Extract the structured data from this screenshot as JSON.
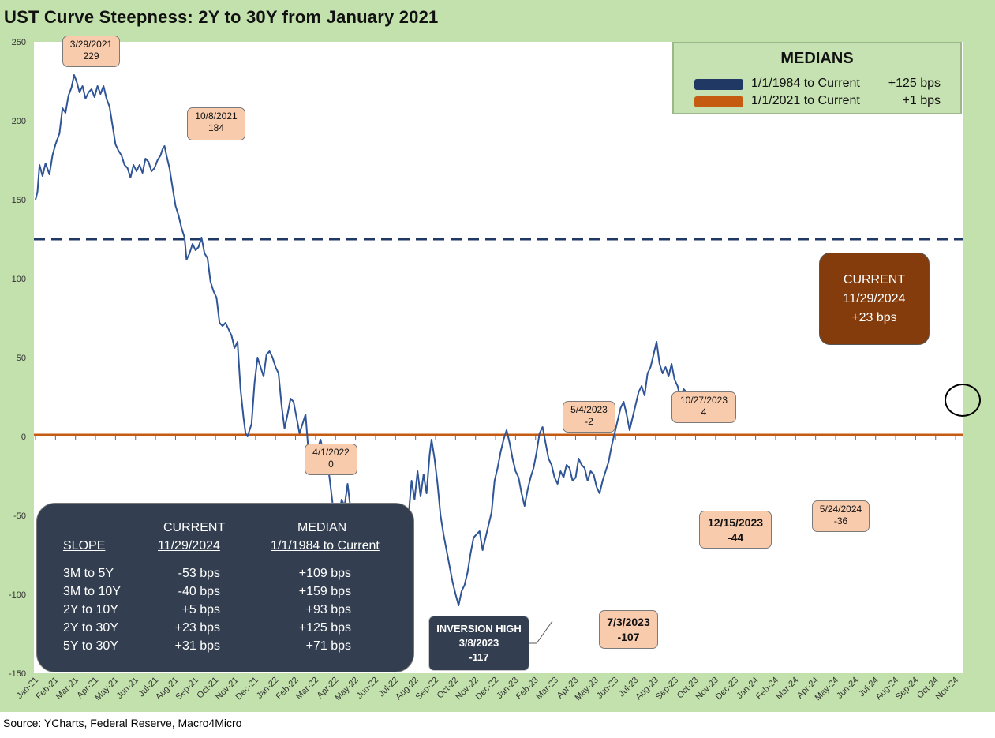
{
  "title": "UST Curve Steepness: 2Y to 30Y from January 2021",
  "source": "Source: YCharts, Federal Reserve, Macro4Micro",
  "colors": {
    "series": "#2f5597",
    "median_1984": "#203864",
    "median_2021": "#c55a11",
    "plot_bg": "#ffffff",
    "frame": "#c3e1ad"
  },
  "medians_box": {
    "title": "MEDIANS",
    "rows": [
      {
        "label": "1/1/1984 to Current",
        "value": "+125 bps",
        "color": "#203864"
      },
      {
        "label": "1/1/2021 to Current",
        "value": "+1 bps",
        "color": "#c55a11"
      }
    ]
  },
  "current_box": {
    "line1": "CURRENT",
    "line2": "11/29/2024",
    "line3": "+23 bps"
  },
  "annotations": [
    {
      "date": "3/29/2021",
      "value": "229"
    },
    {
      "date": "10/8/2021",
      "value": "184"
    },
    {
      "date": "4/1/2022",
      "value": "0"
    },
    {
      "date": "5/4/2023",
      "value": "-2"
    },
    {
      "date": "10/27/2023",
      "value": "4"
    },
    {
      "date": "12/15/2023",
      "value": "-44"
    },
    {
      "date": "5/24/2024",
      "value": "-36"
    },
    {
      "date": "7/3/2023",
      "value": "-107"
    },
    {
      "label": "INVERSION HIGH",
      "date": "3/8/2023",
      "value": "-117"
    }
  ],
  "slope_table": {
    "headers": {
      "slope": "SLOPE",
      "current_top": "CURRENT",
      "current_bottom": "11/29/2024",
      "median_top": "MEDIAN",
      "median_bottom": "1/1/1984 to Current"
    },
    "rows": [
      {
        "name": "3M to 5Y",
        "current": "-53 bps",
        "median": "+109 bps"
      },
      {
        "name": "3M to 10Y",
        "current": "-40 bps",
        "median": "+159 bps"
      },
      {
        "name": "2Y to 10Y",
        "current": "+5 bps",
        "median": "+93 bps"
      },
      {
        "name": "2Y to 30Y",
        "current": "+23 bps",
        "median": "+125 bps"
      },
      {
        "name": "5Y to 30Y",
        "current": "+31 bps",
        "median": "+71 bps"
      }
    ]
  },
  "chart_data": {
    "type": "line",
    "ylim": [
      -150,
      250
    ],
    "ytick_values": [
      -150,
      -100,
      -50,
      0,
      50,
      100,
      150,
      200,
      250
    ],
    "ytick_labels": [
      "-150",
      "-100",
      "-50",
      "0",
      "50",
      "100",
      "150",
      "200",
      "250"
    ],
    "xtick_labels": [
      "Jan-21",
      "Feb-21",
      "Mar-21",
      "Apr-21",
      "May-21",
      "Jun-21",
      "Jul-21",
      "Aug-21",
      "Sep-21",
      "Oct-21",
      "Nov-21",
      "Dec-21",
      "Jan-22",
      "Feb-22",
      "Mar-22",
      "Apr-22",
      "May-22",
      "Jun-22",
      "Jul-22",
      "Aug-22",
      "Sep-22",
      "Oct-22",
      "Nov-22",
      "Dec-22",
      "Jan-23",
      "Feb-23",
      "Mar-23",
      "Apr-23",
      "May-23",
      "Jun-23",
      "Jul-23",
      "Aug-23",
      "Sep-23",
      "Oct-23",
      "Nov-23",
      "Dec-23",
      "Jan-24",
      "Feb-24",
      "Mar-24",
      "Apr-24",
      "May-24",
      "Jun-24",
      "Jul-24",
      "Aug-24",
      "Sep-24",
      "Oct-24",
      "Nov-24"
    ],
    "reference_lines": [
      {
        "label": "1/1/1984 to Current",
        "y": 125,
        "style": "dashed"
      },
      {
        "label": "1/1/2021 to Current",
        "y": 1,
        "style": "solid"
      }
    ],
    "series": [
      {
        "values": [
          [
            0,
            150
          ],
          [
            0.1,
            155
          ],
          [
            0.2,
            172
          ],
          [
            0.35,
            165
          ],
          [
            0.5,
            173
          ],
          [
            0.7,
            166
          ],
          [
            0.85,
            178
          ],
          [
            1.0,
            185
          ],
          [
            1.2,
            192
          ],
          [
            1.35,
            208
          ],
          [
            1.5,
            205
          ],
          [
            1.65,
            216
          ],
          [
            1.8,
            221
          ],
          [
            1.93,
            229
          ],
          [
            2.05,
            225
          ],
          [
            2.2,
            218
          ],
          [
            2.35,
            222
          ],
          [
            2.5,
            214
          ],
          [
            2.65,
            218
          ],
          [
            2.8,
            220
          ],
          [
            2.95,
            215
          ],
          [
            3.1,
            222
          ],
          [
            3.25,
            217
          ],
          [
            3.4,
            222
          ],
          [
            3.55,
            214
          ],
          [
            3.7,
            209
          ],
          [
            3.85,
            197
          ],
          [
            4.0,
            185
          ],
          [
            4.15,
            181
          ],
          [
            4.3,
            178
          ],
          [
            4.45,
            172
          ],
          [
            4.6,
            170
          ],
          [
            4.75,
            164
          ],
          [
            4.9,
            172
          ],
          [
            5.05,
            168
          ],
          [
            5.2,
            172
          ],
          [
            5.35,
            167
          ],
          [
            5.5,
            176
          ],
          [
            5.65,
            174
          ],
          [
            5.8,
            168
          ],
          [
            5.95,
            170
          ],
          [
            6.1,
            175
          ],
          [
            6.25,
            178
          ],
          [
            6.35,
            182
          ],
          [
            6.45,
            184
          ],
          [
            6.55,
            178
          ],
          [
            6.7,
            170
          ],
          [
            6.85,
            158
          ],
          [
            7.0,
            146
          ],
          [
            7.15,
            140
          ],
          [
            7.3,
            132
          ],
          [
            7.45,
            126
          ],
          [
            7.55,
            112
          ],
          [
            7.7,
            116
          ],
          [
            7.85,
            122
          ],
          [
            8.0,
            118
          ],
          [
            8.15,
            120
          ],
          [
            8.3,
            126
          ],
          [
            8.45,
            116
          ],
          [
            8.6,
            113
          ],
          [
            8.75,
            98
          ],
          [
            8.9,
            92
          ],
          [
            9.05,
            88
          ],
          [
            9.2,
            72
          ],
          [
            9.35,
            70
          ],
          [
            9.5,
            72
          ],
          [
            9.65,
            68
          ],
          [
            9.8,
            64
          ],
          [
            9.95,
            56
          ],
          [
            10.1,
            60
          ],
          [
            10.25,
            30
          ],
          [
            10.4,
            12
          ],
          [
            10.5,
            2
          ],
          [
            10.6,
            0
          ],
          [
            10.8,
            8
          ],
          [
            10.95,
            34
          ],
          [
            11.1,
            50
          ],
          [
            11.25,
            44
          ],
          [
            11.4,
            38
          ],
          [
            11.55,
            52
          ],
          [
            11.7,
            54
          ],
          [
            11.85,
            50
          ],
          [
            12.0,
            44
          ],
          [
            12.15,
            40
          ],
          [
            12.3,
            20
          ],
          [
            12.45,
            5
          ],
          [
            12.6,
            14
          ],
          [
            12.75,
            24
          ],
          [
            12.9,
            22
          ],
          [
            13.05,
            12
          ],
          [
            13.2,
            2
          ],
          [
            13.35,
            8
          ],
          [
            13.5,
            14
          ],
          [
            13.65,
            -10
          ],
          [
            13.8,
            -14
          ],
          [
            13.95,
            -22
          ],
          [
            14.1,
            -8
          ],
          [
            14.25,
            -2
          ],
          [
            14.4,
            -10
          ],
          [
            14.55,
            -14
          ],
          [
            14.7,
            -26
          ],
          [
            14.85,
            -42
          ],
          [
            15.0,
            -48
          ],
          [
            15.15,
            -52
          ],
          [
            15.3,
            -40
          ],
          [
            15.45,
            -44
          ],
          [
            15.6,
            -30
          ],
          [
            15.75,
            -46
          ],
          [
            15.9,
            -60
          ],
          [
            16.05,
            -54
          ],
          [
            16.2,
            -64
          ],
          [
            16.35,
            -72
          ],
          [
            16.5,
            -78
          ],
          [
            16.65,
            -84
          ],
          [
            16.8,
            -70
          ],
          [
            16.95,
            -62
          ],
          [
            17.1,
            -50
          ],
          [
            17.25,
            -52
          ],
          [
            17.4,
            -48
          ],
          [
            17.55,
            -56
          ],
          [
            17.7,
            -60
          ],
          [
            17.85,
            -64
          ],
          [
            18.0,
            -70
          ],
          [
            18.15,
            -74
          ],
          [
            18.3,
            -80
          ],
          [
            18.45,
            -96
          ],
          [
            18.55,
            -117
          ],
          [
            18.65,
            -50
          ],
          [
            18.8,
            -28
          ],
          [
            18.95,
            -40
          ],
          [
            19.1,
            -22
          ],
          [
            19.25,
            -38
          ],
          [
            19.4,
            -24
          ],
          [
            19.55,
            -36
          ],
          [
            19.7,
            -12
          ],
          [
            19.8,
            -2
          ],
          [
            19.95,
            -14
          ],
          [
            20.1,
            -30
          ],
          [
            20.25,
            -50
          ],
          [
            20.4,
            -62
          ],
          [
            20.55,
            -72
          ],
          [
            20.7,
            -82
          ],
          [
            20.85,
            -92
          ],
          [
            21.0,
            -100
          ],
          [
            21.15,
            -107
          ],
          [
            21.3,
            -98
          ],
          [
            21.45,
            -94
          ],
          [
            21.6,
            -86
          ],
          [
            21.75,
            -74
          ],
          [
            21.9,
            -64
          ],
          [
            22.05,
            -62
          ],
          [
            22.2,
            -60
          ],
          [
            22.35,
            -72
          ],
          [
            22.5,
            -64
          ],
          [
            22.65,
            -56
          ],
          [
            22.8,
            -48
          ],
          [
            22.95,
            -28
          ],
          [
            23.1,
            -20
          ],
          [
            23.25,
            -10
          ],
          [
            23.4,
            -2
          ],
          [
            23.55,
            4
          ],
          [
            23.7,
            -4
          ],
          [
            23.85,
            -14
          ],
          [
            24.0,
            -22
          ],
          [
            24.15,
            -26
          ],
          [
            24.3,
            -36
          ],
          [
            24.45,
            -44
          ],
          [
            24.6,
            -34
          ],
          [
            24.75,
            -26
          ],
          [
            24.9,
            -20
          ],
          [
            25.05,
            -10
          ],
          [
            25.2,
            2
          ],
          [
            25.35,
            6
          ],
          [
            25.5,
            -4
          ],
          [
            25.65,
            -14
          ],
          [
            25.8,
            -18
          ],
          [
            25.95,
            -26
          ],
          [
            26.1,
            -30
          ],
          [
            26.25,
            -22
          ],
          [
            26.4,
            -26
          ],
          [
            26.55,
            -18
          ],
          [
            26.7,
            -20
          ],
          [
            26.85,
            -28
          ],
          [
            27.0,
            -26
          ],
          [
            27.15,
            -14
          ],
          [
            27.3,
            -18
          ],
          [
            27.45,
            -20
          ],
          [
            27.6,
            -28
          ],
          [
            27.75,
            -22
          ],
          [
            27.9,
            -24
          ],
          [
            28.05,
            -32
          ],
          [
            28.2,
            -36
          ],
          [
            28.35,
            -28
          ],
          [
            28.5,
            -22
          ],
          [
            28.65,
            -16
          ],
          [
            28.8,
            -6
          ],
          [
            28.95,
            2
          ],
          [
            29.1,
            10
          ],
          [
            29.25,
            18
          ],
          [
            29.4,
            22
          ],
          [
            29.55,
            14
          ],
          [
            29.7,
            4
          ],
          [
            29.85,
            12
          ],
          [
            30.0,
            20
          ],
          [
            30.15,
            28
          ],
          [
            30.3,
            32
          ],
          [
            30.45,
            26
          ],
          [
            30.6,
            40
          ],
          [
            30.75,
            44
          ],
          [
            30.9,
            52
          ],
          [
            31.05,
            60
          ],
          [
            31.2,
            46
          ],
          [
            31.35,
            40
          ],
          [
            31.5,
            44
          ],
          [
            31.65,
            38
          ],
          [
            31.8,
            46
          ],
          [
            31.95,
            36
          ],
          [
            32.1,
            32
          ],
          [
            32.25,
            24
          ],
          [
            32.4,
            30
          ],
          [
            32.55,
            28
          ],
          [
            32.7,
            23
          ]
        ]
      }
    ],
    "x_span": [
      0,
      32.7
    ],
    "note_x_units": "months since Jan-21"
  }
}
